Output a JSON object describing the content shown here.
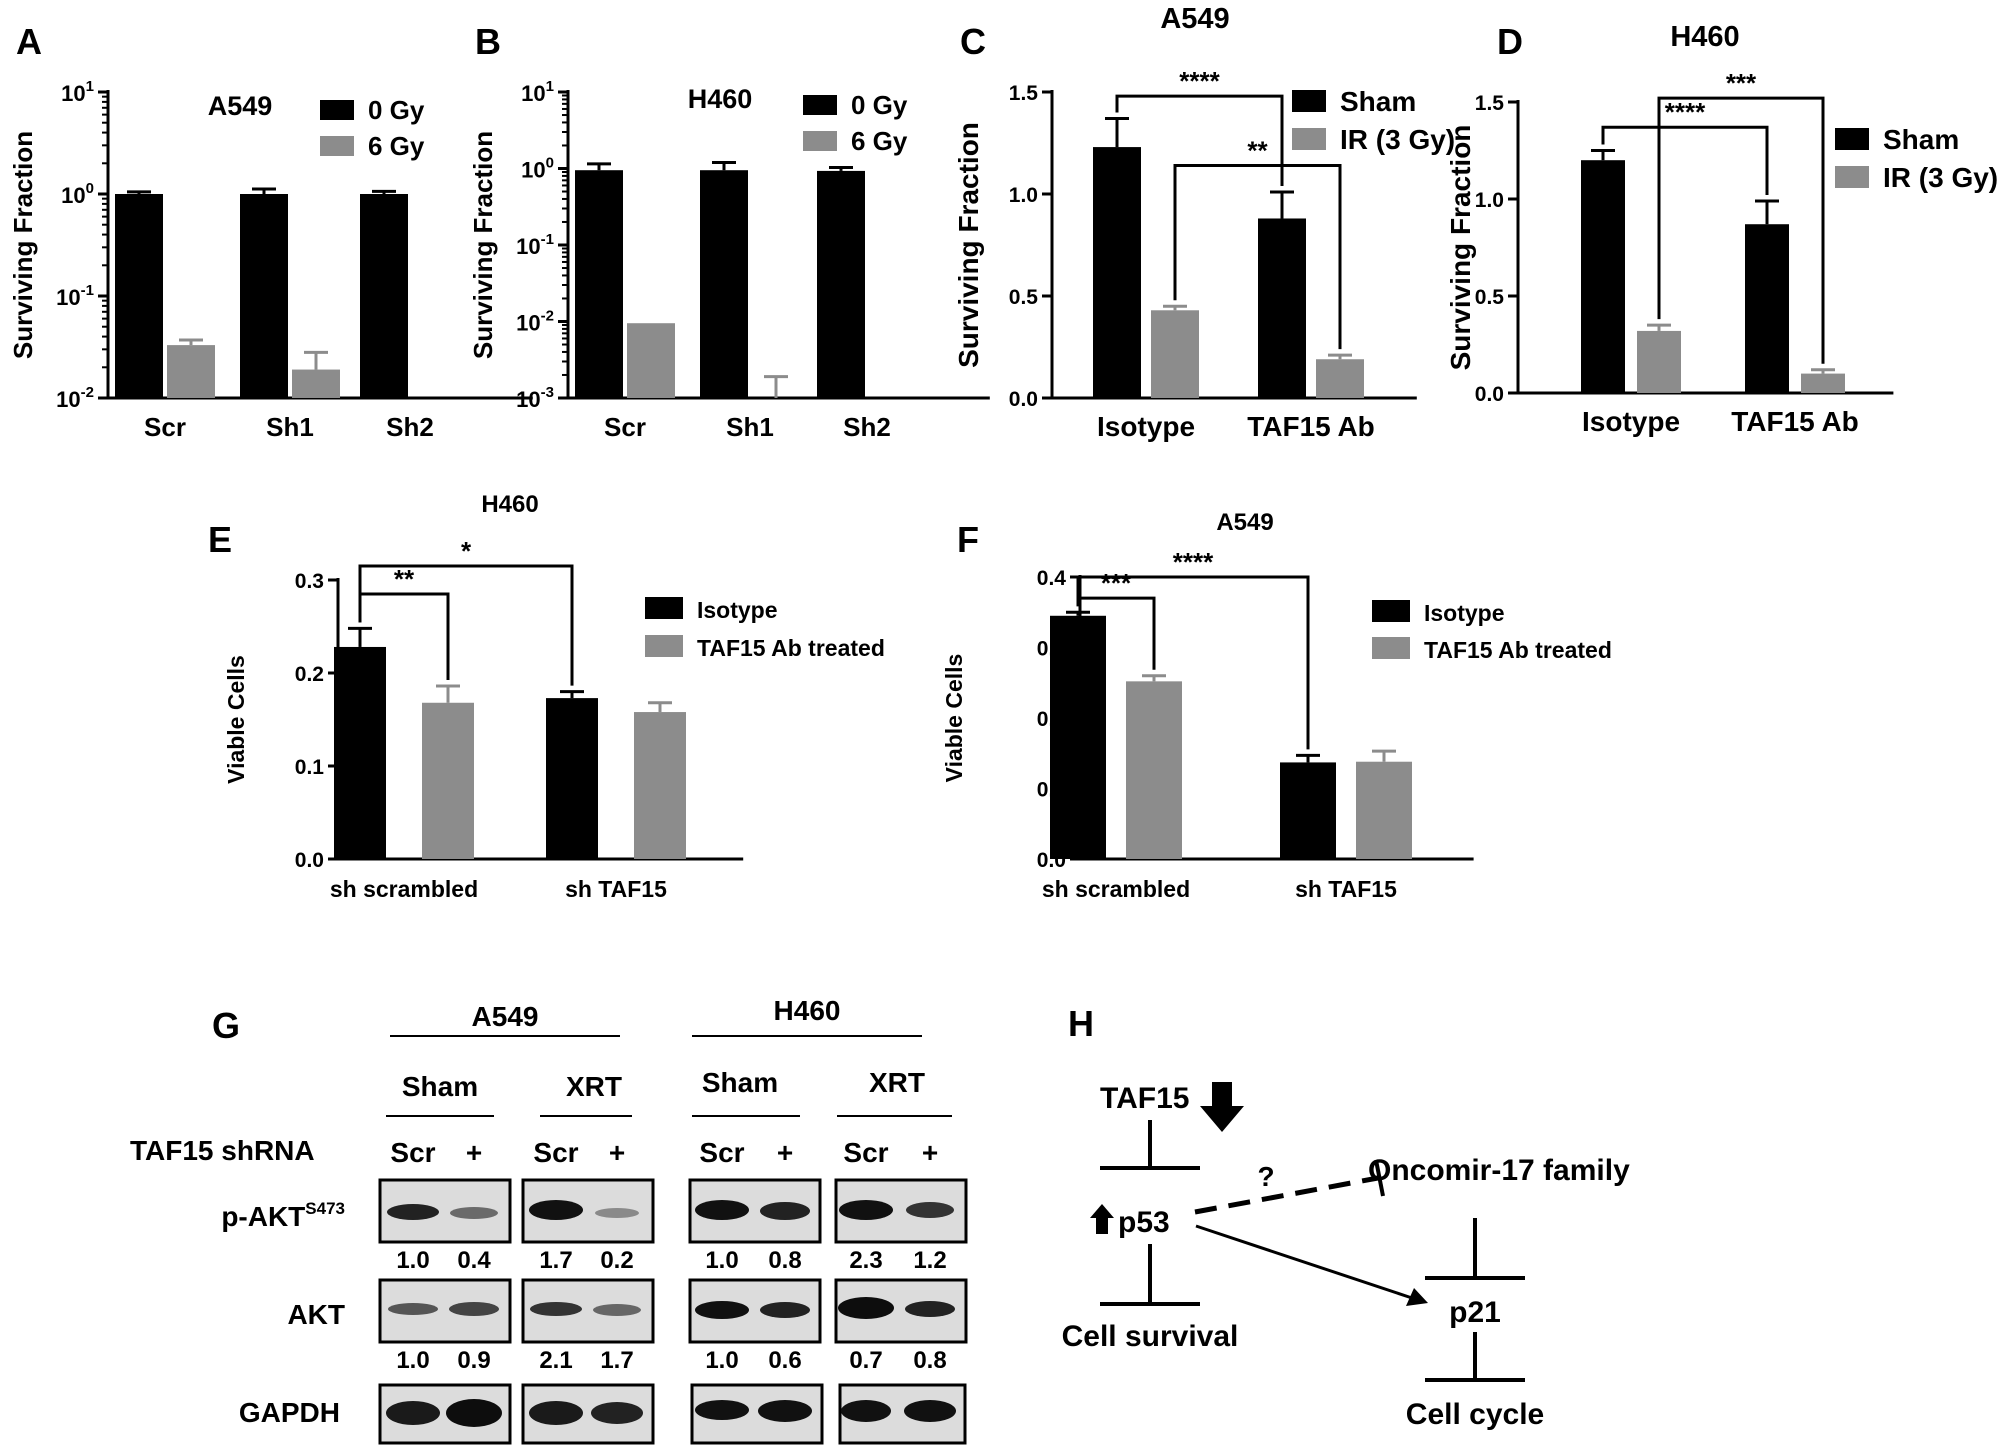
{
  "panels": [
    {
      "letter": "A",
      "chart_data": {
        "type": "bar",
        "title": "A549",
        "ylabel": "Surviving Fraction",
        "yscale": "log",
        "ylim": [
          0.01,
          10
        ],
        "yticks": [
          {
            "v": 0.01,
            "m": "10",
            "e": "-2"
          },
          {
            "v": 0.1,
            "m": "10",
            "e": "-1"
          },
          {
            "v": 1,
            "m": "10",
            "e": "0"
          },
          {
            "v": 10,
            "m": "10",
            "e": "1"
          }
        ],
        "categories": [
          "Scr",
          "Sh1",
          "Sh2"
        ],
        "series": [
          {
            "name": "0 Gy",
            "color": "#000000",
            "values": [
              1.0,
              1.0,
              1.0
            ],
            "errors": [
              0.05,
              0.12,
              0.06
            ]
          },
          {
            "name": "6 Gy",
            "color": "#8c8c8c",
            "values": [
              0.033,
              0.019,
              null
            ],
            "errors": [
              0.004,
              0.009,
              null
            ]
          }
        ],
        "legend": "top-right"
      }
    },
    {
      "letter": "B",
      "chart_data": {
        "type": "bar",
        "title": "H460",
        "ylabel": "Surviving Fraction",
        "yscale": "log",
        "ylim": [
          0.001,
          10
        ],
        "yticks": [
          {
            "v": 0.001,
            "m": "10",
            "e": "-3"
          },
          {
            "v": 0.01,
            "m": "10",
            "e": "-2"
          },
          {
            "v": 0.1,
            "m": "10",
            "e": "-1"
          },
          {
            "v": 1,
            "m": "10",
            "e": "0"
          },
          {
            "v": 10,
            "m": "10",
            "e": "1"
          }
        ],
        "categories": [
          "Scr",
          "Sh1",
          "Sh2"
        ],
        "series": [
          {
            "name": "0 Gy",
            "color": "#000000",
            "values": [
              0.95,
              0.95,
              0.93
            ],
            "errors": [
              0.2,
              0.25,
              0.1
            ]
          },
          {
            "name": "6 Gy",
            "color": "#8c8c8c",
            "values": [
              0.0095,
              0.001,
              null
            ],
            "errors": [
              null,
              0.0009,
              null
            ]
          }
        ],
        "legend": "top-right"
      }
    },
    {
      "letter": "C",
      "chart_data": {
        "type": "bar",
        "title": "A549",
        "ylabel": "Surviving Fraction",
        "ylim": [
          0,
          1.5
        ],
        "yticks": [
          "0.0",
          "0.5",
          "1.0",
          "1.5"
        ],
        "categories": [
          "Isotype",
          "TAF15 Ab"
        ],
        "series": [
          {
            "name": "Sham",
            "color": "#000000",
            "values": [
              1.23,
              0.88
            ],
            "errors": [
              0.14,
              0.13
            ]
          },
          {
            "name": "IR (3 Gy)",
            "color": "#8c8c8c",
            "values": [
              0.43,
              0.19
            ],
            "errors": [
              0.02,
              0.02
            ]
          }
        ],
        "significance": [
          {
            "from": [
              0,
              0
            ],
            "to": [
              1,
              0
            ],
            "label": "****",
            "y": 1.48
          },
          {
            "from": [
              0,
              1
            ],
            "to": [
              1,
              1
            ],
            "label": "**",
            "y": 1.14
          }
        ],
        "legend": "top-right"
      }
    },
    {
      "letter": "D",
      "chart_data": {
        "type": "bar",
        "title": "H460",
        "ylabel": "Surviving Fraction",
        "ylim": [
          0,
          1.5
        ],
        "yticks": [
          "0.0",
          "0.5",
          "1.0",
          "1.5"
        ],
        "categories": [
          "Isotype",
          "TAF15 Ab"
        ],
        "series": [
          {
            "name": "Sham",
            "color": "#000000",
            "values": [
              1.2,
              0.87
            ],
            "errors": [
              0.05,
              0.12
            ]
          },
          {
            "name": "IR (3 Gy)",
            "color": "#8c8c8c",
            "values": [
              0.32,
              0.1
            ],
            "errors": [
              0.03,
              0.02
            ]
          }
        ],
        "significance": [
          {
            "from": [
              0,
              0
            ],
            "to": [
              1,
              0
            ],
            "label": "****",
            "y": 1.37
          },
          {
            "from": [
              0,
              1
            ],
            "to": [
              1,
              1
            ],
            "label": "***",
            "y": 1.52
          }
        ],
        "legend": "top-right"
      }
    },
    {
      "letter": "E",
      "chart_data": {
        "type": "bar",
        "title": "H460",
        "ylabel": "Viable Cells",
        "ylim": [
          0,
          0.3
        ],
        "yticks": [
          "0.0",
          "0.1",
          "0.2",
          "0.3"
        ],
        "categories": [
          "sh scrambled",
          "sh TAF15"
        ],
        "series": [
          {
            "name": "Isotype",
            "color": "#000000",
            "values": [
              0.228,
              0.173
            ],
            "errors": [
              0.02,
              0.007
            ]
          },
          {
            "name": "TAF15 Ab treated",
            "color": "#8c8c8c",
            "values": [
              0.168,
              0.158
            ],
            "errors": [
              0.018,
              0.01
            ]
          }
        ],
        "significance": [
          {
            "from": [
              0,
              0
            ],
            "to": [
              0,
              1
            ],
            "label": "**",
            "y": 0.285
          },
          {
            "from": [
              0,
              0
            ],
            "to": [
              1,
              0
            ],
            "label": "*",
            "y": 0.315
          }
        ],
        "legend": "right"
      }
    },
    {
      "letter": "F",
      "chart_data": {
        "type": "bar",
        "title": "A549",
        "ylabel": "Viable Cells",
        "ylim": [
          0,
          0.4
        ],
        "yticks": [
          "0.0",
          "0.1",
          "0.2",
          "0.3",
          "0.4"
        ],
        "categories": [
          "sh scrambled",
          "sh TAF15"
        ],
        "series": [
          {
            "name": "Isotype",
            "color": "#000000",
            "values": [
              0.345,
              0.137
            ],
            "errors": [
              0.005,
              0.01
            ]
          },
          {
            "name": "TAF15 Ab treated",
            "color": "#8c8c8c",
            "values": [
              0.252,
              0.138
            ],
            "errors": [
              0.008,
              0.015
            ]
          }
        ],
        "significance": [
          {
            "from": [
              0,
              0
            ],
            "to": [
              0,
              1
            ],
            "label": "***",
            "y": 0.37
          },
          {
            "from": [
              0,
              0
            ],
            "to": [
              1,
              0
            ],
            "label": "****",
            "y": 0.4
          }
        ],
        "legend": "right"
      }
    }
  ],
  "panel_g": {
    "letter": "G",
    "groups": [
      {
        "label": "A549"
      },
      {
        "label": "H460"
      }
    ],
    "conditions": [
      "Sham",
      "XRT",
      "Sham",
      "XRT"
    ],
    "shrna_label": "TAF15 shRNA",
    "lanes": [
      "Scr",
      "+"
    ],
    "rows": [
      {
        "label": "p-AKT",
        "sup": "S473",
        "values": [
          [
            "1.0",
            "0.4"
          ],
          [
            "1.7",
            "0.2"
          ],
          [
            "1.0",
            "0.8"
          ],
          [
            "2.3",
            "1.2"
          ]
        ]
      },
      {
        "label": "AKT",
        "sup": "",
        "values": [
          [
            "1.0",
            "0.9"
          ],
          [
            "2.1",
            "1.7"
          ],
          [
            "1.0",
            "0.6"
          ],
          [
            "0.7",
            "0.8"
          ]
        ]
      },
      {
        "label": "GAPDH",
        "sup": "",
        "values": []
      }
    ]
  },
  "panel_h": {
    "letter": "H",
    "taf15": "TAF15",
    "p53": "p53",
    "question": "?",
    "oncomir": "Oncomir-17 family",
    "survival": "Cell survival",
    "p21": "p21",
    "cycle": "Cell cycle"
  }
}
